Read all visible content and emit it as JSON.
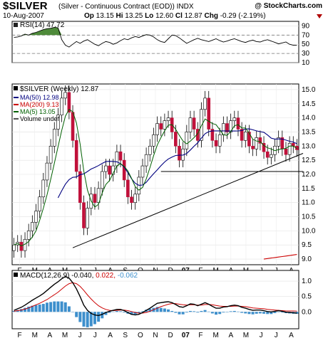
{
  "header": {
    "symbol": "$SILVER",
    "description": "(Silver - Continuous Contract (EOD))",
    "exchange": "INDX",
    "brand": "@ StockCharts.com",
    "date": "10-Aug-2007",
    "open_label": "Op",
    "open": "13.15",
    "high_label": "Hi",
    "high": "13.25",
    "low_label": "Lo",
    "low": "12.60",
    "close_label": "Cl",
    "close": "12.87",
    "change_label": "Chg",
    "change": "-0.29 (-2.19%)"
  },
  "colors": {
    "up": "#ffffff",
    "down": "#c0103a",
    "ma50": "#000080",
    "ma200": "#cc0000",
    "ma5": "#006000",
    "rsi_fill": "#4e8a3a",
    "macd_hist": "#3d8fcc",
    "macd_line": "#000000",
    "macd_signal": "#cc0000"
  },
  "chart_data": [
    {
      "type": "line",
      "panel": "RSI",
      "legend": "RSI(14) 47.72",
      "ylim": [
        10,
        100
      ],
      "y_ticks": [
        "10",
        "30",
        "50",
        "70",
        "90"
      ],
      "levels": [
        30,
        70
      ],
      "x": [
        0,
        1,
        2,
        3,
        4,
        5,
        6,
        7,
        8,
        9,
        10,
        11,
        12,
        13,
        14,
        15,
        16,
        17,
        18,
        19,
        20,
        21,
        22,
        23,
        24,
        25,
        26,
        27,
        28,
        29,
        30,
        31,
        32,
        33,
        34,
        35,
        36,
        37,
        38,
        39,
        40,
        41,
        42,
        43,
        44,
        45,
        46,
        47,
        48,
        49,
        50,
        51,
        52,
        53,
        54,
        55,
        56,
        57,
        58,
        59,
        60,
        61,
        62,
        63,
        64,
        65,
        66,
        67,
        68,
        69,
        70,
        71,
        72,
        73,
        74,
        75,
        76,
        77
      ],
      "values": [
        65,
        66,
        68,
        72,
        70,
        74,
        76,
        79,
        82,
        84,
        85,
        87,
        86,
        60,
        48,
        44,
        50,
        56,
        52,
        57,
        60,
        55,
        50,
        47,
        52,
        56,
        54,
        50,
        53,
        58,
        62,
        60,
        64,
        67,
        65,
        68,
        71,
        70,
        66,
        60,
        56,
        54,
        62,
        70,
        69,
        64,
        58,
        52,
        56,
        60,
        63,
        60,
        58,
        56,
        59,
        62,
        58,
        55,
        57,
        60,
        62,
        59,
        56,
        54,
        57,
        59,
        56,
        55,
        58,
        60,
        57,
        54,
        51,
        53,
        55,
        50,
        48,
        47.72
      ]
    },
    {
      "type": "candlestick",
      "panel": "price",
      "title": "$SILVER (Weekly) 12.87",
      "x_ticks": [
        "F",
        "M",
        "A",
        "M",
        "J",
        "J",
        "A",
        "S",
        "O",
        "N",
        "D",
        "07",
        "F",
        "M",
        "A",
        "M",
        "J",
        "J",
        "A"
      ],
      "y_ticks": [
        "9.0",
        "9.5",
        "10.0",
        "10.5",
        "11.0",
        "11.5",
        "12.0",
        "12.5",
        "13.0",
        "13.5",
        "14.0",
        "14.5",
        "15.0"
      ],
      "ylim": [
        8.8,
        15.2
      ],
      "legend": [
        {
          "label": "MA(50)",
          "value": "12.98"
        },
        {
          "label": "MA(200)",
          "value": "9.13"
        },
        {
          "label": "MA(5)",
          "value": "13.05"
        },
        {
          "label": "Volume undef",
          "value": ""
        }
      ],
      "close": [
        9.5,
        9.6,
        9.3,
        9.7,
        10.0,
        10.3,
        10.7,
        11.2,
        11.8,
        12.4,
        13.0,
        13.6,
        14.1,
        14.7,
        14.9,
        14.2,
        13.2,
        12.1,
        11.0,
        10.1,
        10.8,
        11.3,
        11.0,
        11.5,
        12.1,
        12.3,
        12.0,
        12.3,
        12.8,
        12.5,
        11.8,
        11.2,
        11.0,
        11.3,
        11.9,
        12.3,
        12.7,
        13.0,
        13.4,
        13.8,
        13.6,
        13.9,
        14.0,
        13.5,
        13.0,
        12.5,
        12.9,
        13.5,
        14.0,
        13.6,
        13.2,
        14.3,
        14.7,
        13.6,
        13.2,
        13.0,
        13.4,
        13.8,
        13.5,
        13.9,
        14.0,
        13.6,
        13.2,
        13.5,
        13.0,
        12.9,
        13.3,
        13.1,
        12.8,
        12.6,
        12.7,
        13.0,
        13.3,
        12.9,
        12.7,
        13.1,
        13.0,
        12.87
      ],
      "trendlines": [
        {
          "from": [
            16,
            9.4
          ],
          "to": [
            77,
            12.7
          ]
        },
        {
          "from": [
            40,
            12.1
          ],
          "to": [
            77,
            12.1
          ]
        }
      ]
    },
    {
      "type": "line",
      "panel": "MACD",
      "legend_label": "MACD(12,26,9)",
      "legend_values": [
        "-0.040",
        "0.022",
        "-0.062"
      ],
      "x_ticks": [
        "F",
        "M",
        "A",
        "M",
        "J",
        "J",
        "A",
        "S",
        "O",
        "N",
        "D",
        "07",
        "F",
        "M",
        "A",
        "M",
        "J",
        "J",
        "A"
      ],
      "y_ticks": [
        "0.0",
        "0.5",
        "1.0"
      ],
      "ylim": [
        -0.55,
        1.35
      ],
      "macd": [
        0.05,
        0.1,
        0.15,
        0.22,
        0.3,
        0.38,
        0.45,
        0.52,
        0.6,
        0.7,
        0.8,
        0.9,
        0.98,
        1.08,
        1.15,
        1.1,
        0.95,
        0.75,
        0.5,
        0.22,
        0.05,
        -0.05,
        -0.1,
        -0.12,
        -0.08,
        -0.02,
        0.02,
        0.05,
        0.08,
        0.08,
        0.04,
        -0.02,
        -0.08,
        -0.1,
        -0.08,
        -0.02,
        0.05,
        0.12,
        0.2,
        0.28,
        0.3,
        0.32,
        0.33,
        0.3,
        0.24,
        0.17,
        0.15,
        0.2,
        0.26,
        0.25,
        0.2,
        0.25,
        0.3,
        0.25,
        0.18,
        0.12,
        0.12,
        0.16,
        0.17,
        0.2,
        0.22,
        0.2,
        0.15,
        0.12,
        0.08,
        0.05,
        0.06,
        0.06,
        0.04,
        0.01,
        0.0,
        0.02,
        0.04,
        0.02,
        -0.01,
        -0.02,
        -0.03,
        -0.04
      ],
      "signal": [
        0.02,
        0.04,
        0.06,
        0.09,
        0.13,
        0.18,
        0.23,
        0.28,
        0.34,
        0.4,
        0.48,
        0.56,
        0.64,
        0.74,
        0.84,
        0.92,
        0.95,
        0.92,
        0.83,
        0.7,
        0.55,
        0.42,
        0.3,
        0.2,
        0.13,
        0.08,
        0.05,
        0.04,
        0.05,
        0.06,
        0.06,
        0.04,
        0.01,
        -0.02,
        -0.04,
        -0.04,
        -0.02,
        0.02,
        0.07,
        0.12,
        0.17,
        0.21,
        0.25,
        0.27,
        0.27,
        0.25,
        0.23,
        0.22,
        0.23,
        0.23,
        0.22,
        0.22,
        0.24,
        0.24,
        0.23,
        0.21,
        0.19,
        0.18,
        0.18,
        0.18,
        0.19,
        0.19,
        0.18,
        0.17,
        0.15,
        0.13,
        0.12,
        0.11,
        0.1,
        0.08,
        0.07,
        0.06,
        0.05,
        0.04,
        0.03,
        0.03,
        0.03,
        0.022
      ]
    }
  ]
}
